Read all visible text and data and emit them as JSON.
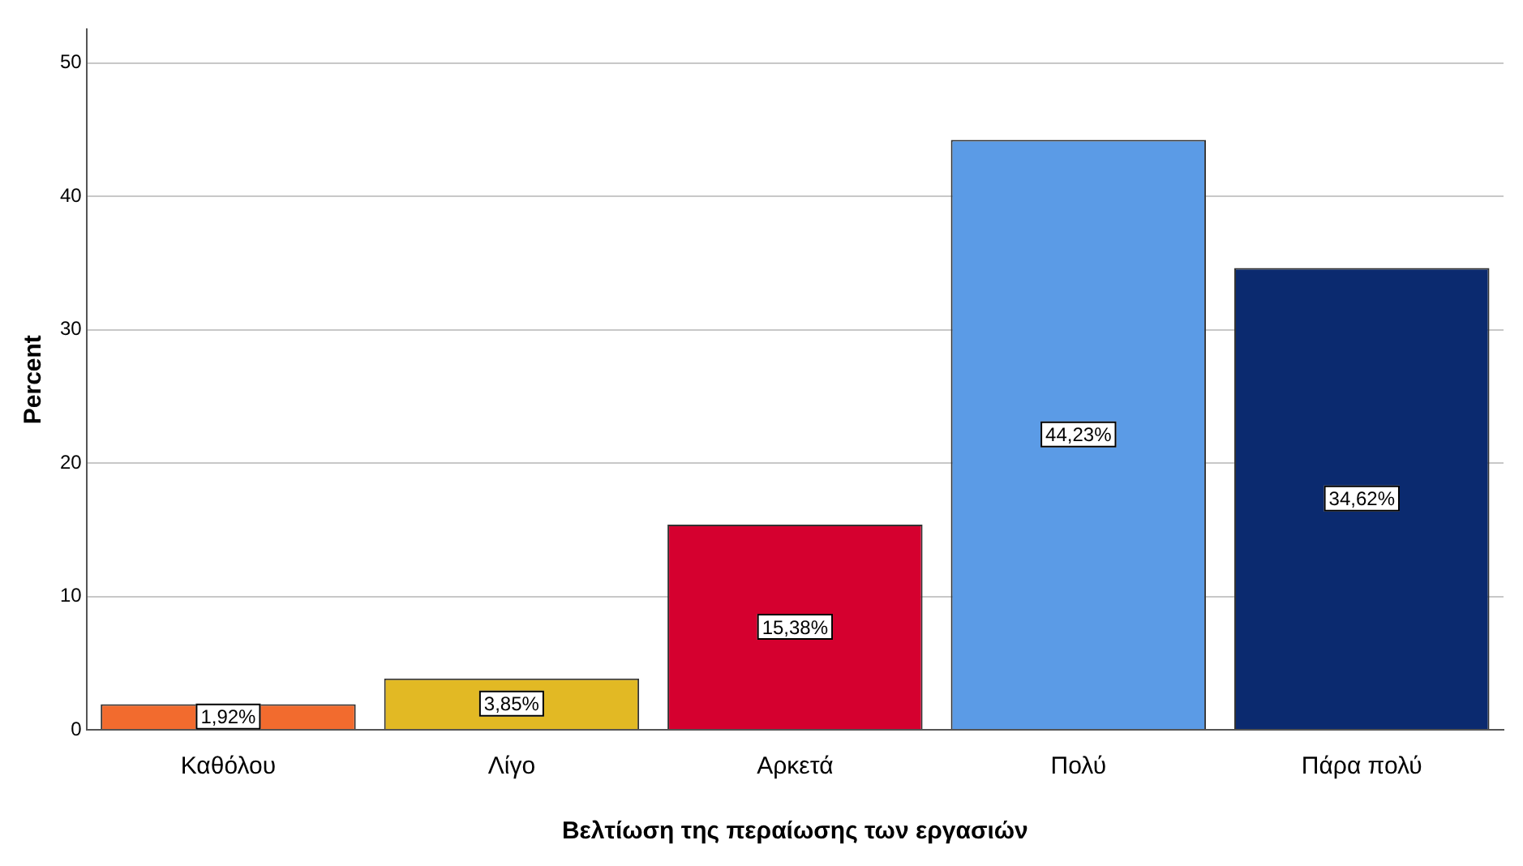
{
  "chart_data": {
    "type": "bar",
    "xlabel": "Βελτίωση της περαίωσης των εργασιών",
    "ylabel": "Percent",
    "categories": [
      "Καθόλου",
      "Λίγο",
      "Αρκετά",
      "Πολύ",
      "Πάρα πολύ"
    ],
    "values": [
      1.92,
      3.85,
      15.38,
      44.23,
      34.62
    ],
    "value_labels": [
      "1,92%",
      "3,85%",
      "15,38%",
      "44,23%",
      "34,62%"
    ],
    "colors": [
      "#f26b2e",
      "#e2b924",
      "#d5002f",
      "#5b9be6",
      "#0b2a6f"
    ],
    "ylim": [
      0,
      52.5
    ],
    "yticks": [
      0,
      10,
      20,
      30,
      40,
      50
    ],
    "grid": "y",
    "legend": false
  }
}
